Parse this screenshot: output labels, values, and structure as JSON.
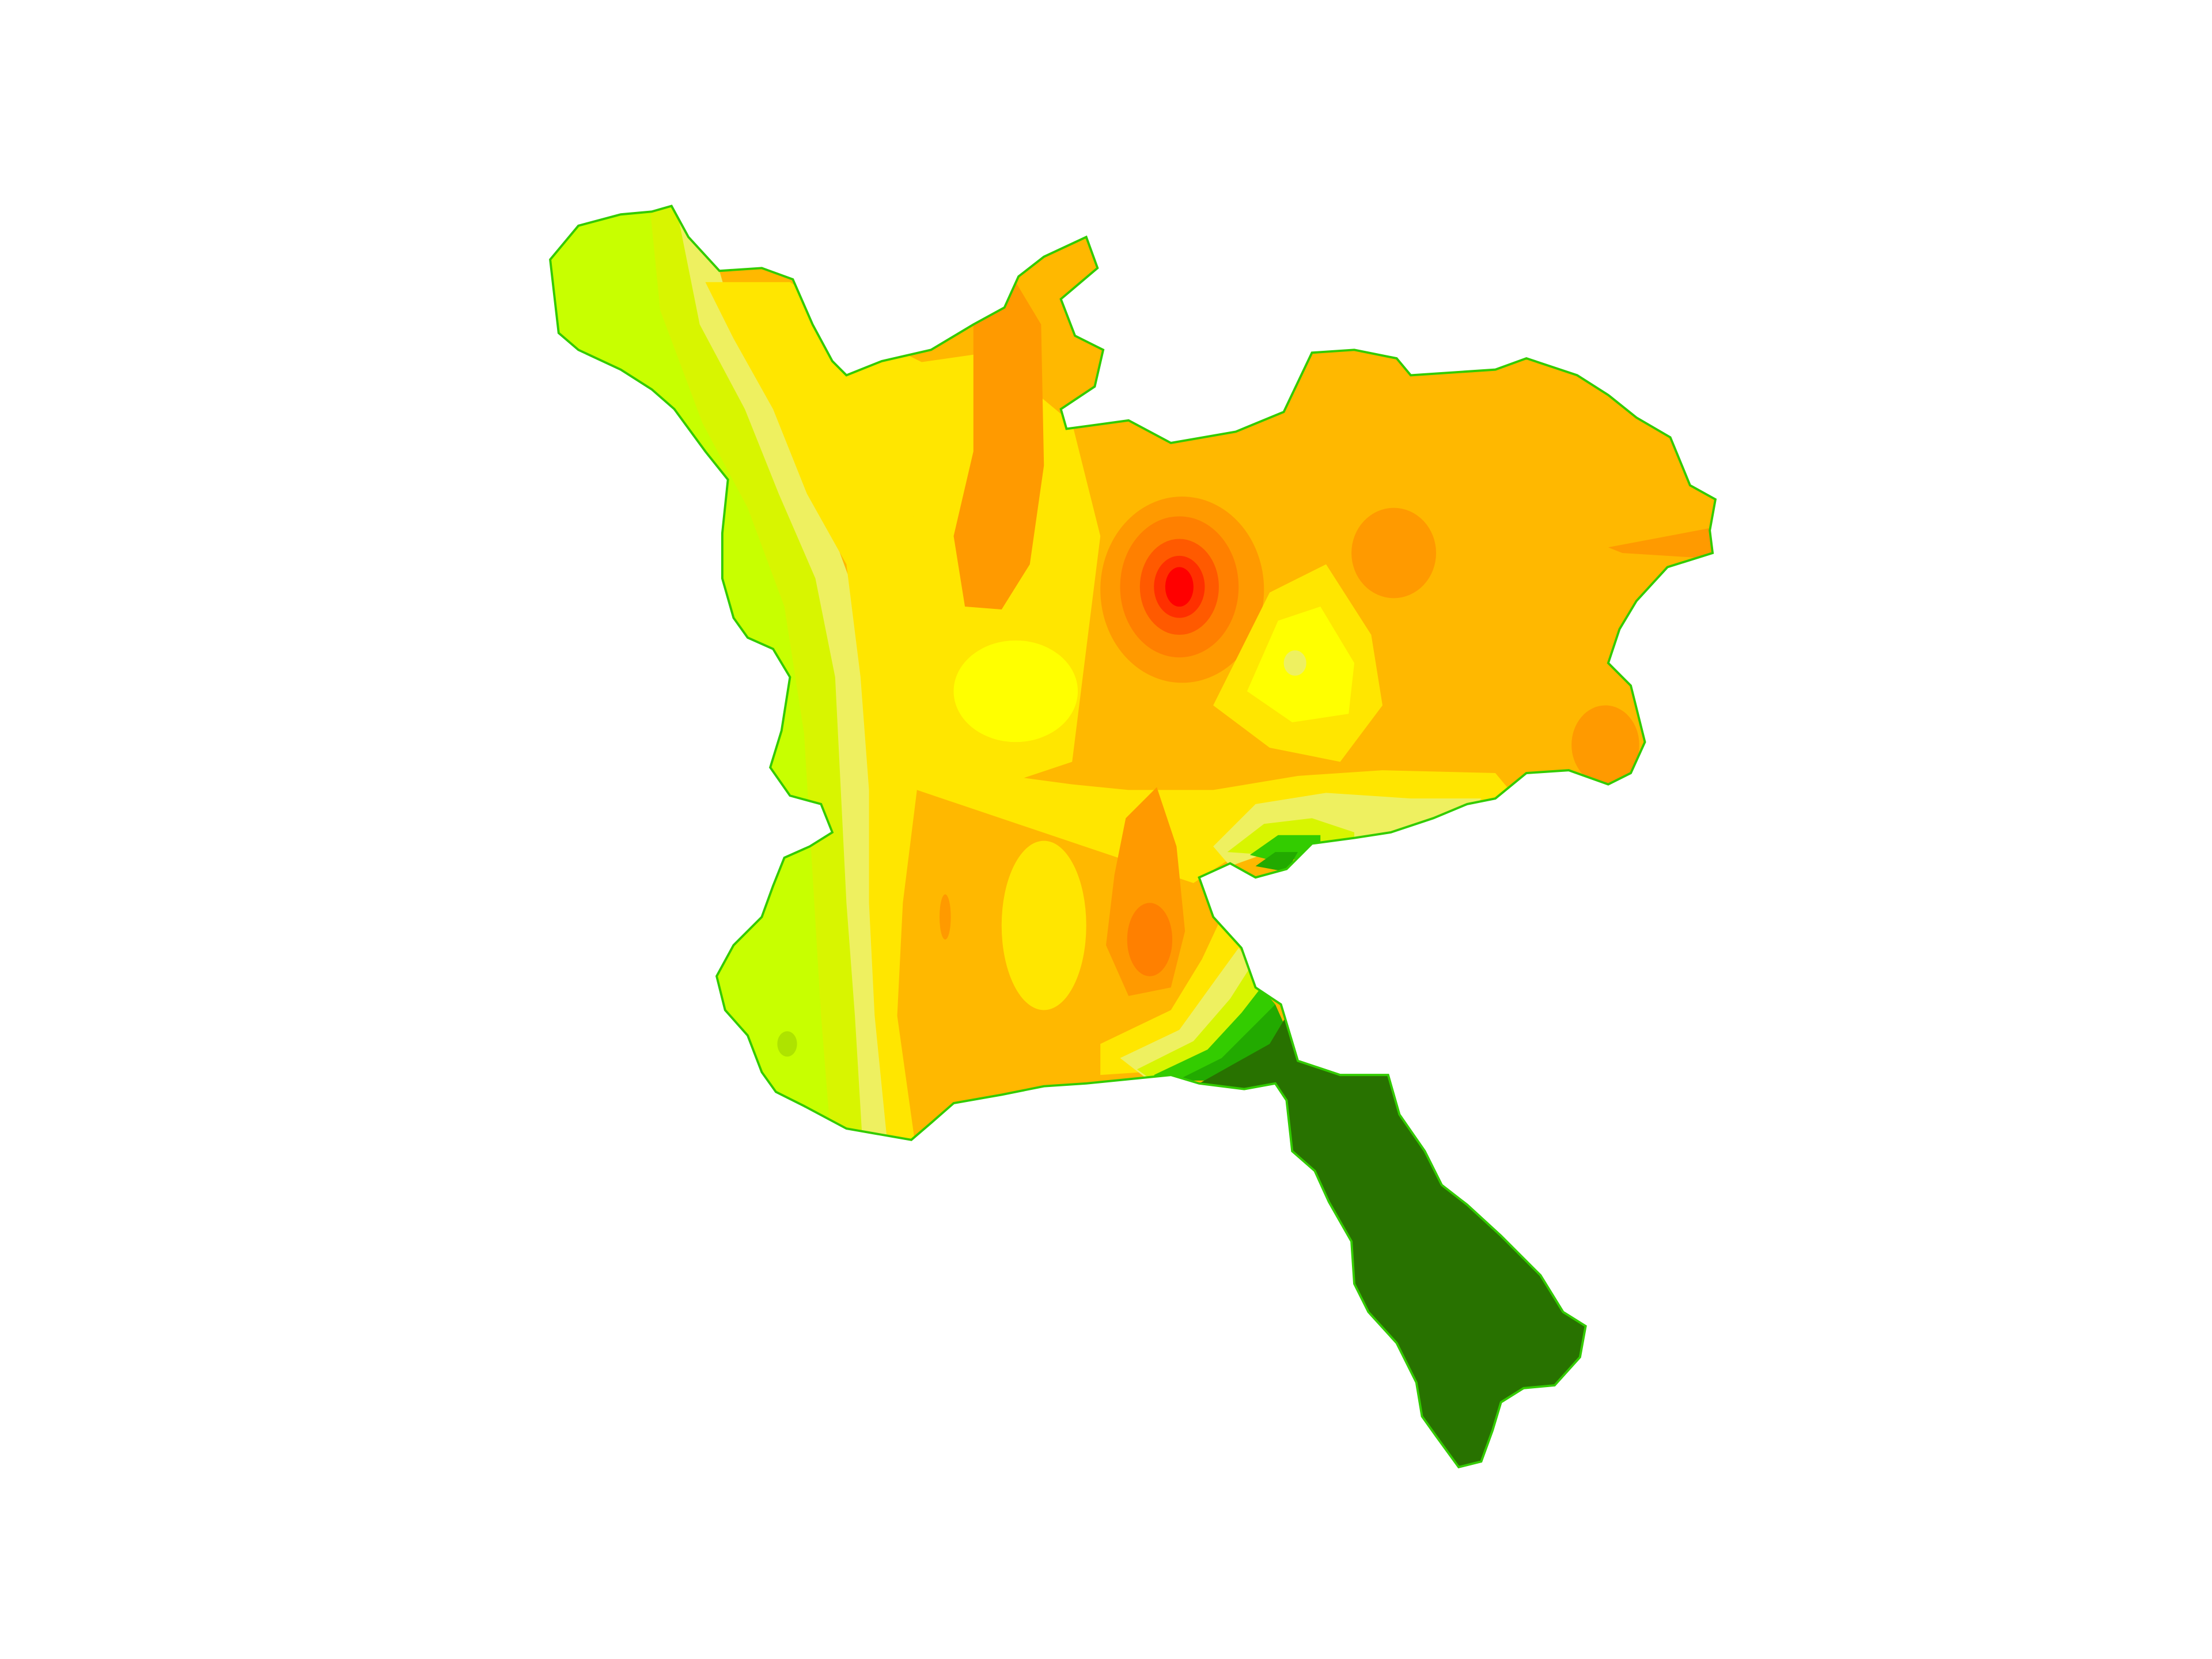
{
  "map": {
    "type": "contour-heatmap",
    "labels_shown": false,
    "legend_shown": false
  },
  "colors": {
    "background": "#ffffff",
    "outline": "#33cc00",
    "low_lime": "#c8ff00",
    "lime": "#d8f500",
    "pale_yellow": "#eef060",
    "yellow": "#ffff00",
    "yellow_deep": "#ffe600",
    "gold": "#ffd200",
    "amber": "#ffb800",
    "orange": "#ff9a00",
    "orange_deep": "#ff8000",
    "red_orange": "#ff5a00",
    "red_mid": "#ff3000",
    "red": "#ff0000",
    "green_bright": "#33cc00",
    "green_mid": "#22aa00",
    "green_dark": "#287200"
  },
  "features": [
    {
      "name": "western-low-zone",
      "color_key": "low_lime"
    },
    {
      "name": "central-high-zone",
      "color_key": "amber"
    },
    {
      "name": "peak-hotspot",
      "color_key": "red"
    },
    {
      "name": "southeastern-valley",
      "color_key": "green_dark"
    }
  ]
}
